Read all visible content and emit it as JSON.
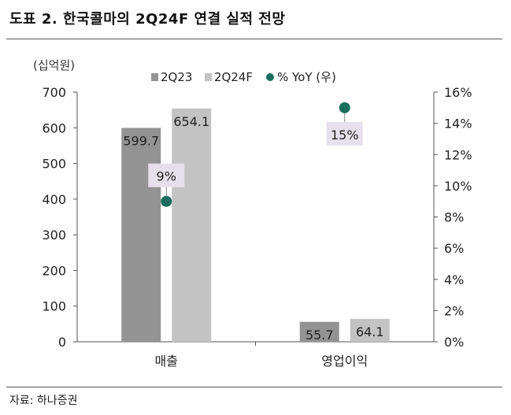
{
  "figure": {
    "title": "도표 2. 한국콜마의 2Q24F 연결 실적 전망",
    "source": "자료: 하나증권"
  },
  "chart_data": {
    "type": "bar",
    "unit_label": "(십억원)",
    "categories": [
      "매출",
      "영업이익"
    ],
    "series": [
      {
        "name": "2Q23",
        "values": [
          599.7,
          55.7
        ],
        "color": "#939393",
        "value_labels": [
          "599.7",
          "55.7"
        ]
      },
      {
        "name": "2Q24F",
        "values": [
          654.1,
          64.1
        ],
        "color": "#c3c3c3",
        "value_labels": [
          "654.1",
          "64.1"
        ]
      }
    ],
    "overlay": {
      "name": "% YoY (우)",
      "type": "scatter",
      "axis": "right",
      "values": [
        9,
        15
      ],
      "value_labels": [
        "9%",
        "15%"
      ],
      "color": "#1a6e5c",
      "label_bg": "#e6e0ec"
    },
    "ylim": [
      0,
      700
    ],
    "yticks": [
      "0",
      "100",
      "200",
      "300",
      "400",
      "500",
      "600",
      "700"
    ],
    "y2lim": [
      0,
      16
    ],
    "y2ticks": [
      "0%",
      "2%",
      "4%",
      "6%",
      "8%",
      "10%",
      "12%",
      "14%",
      "16%"
    ],
    "legend": "top",
    "grid": false
  }
}
